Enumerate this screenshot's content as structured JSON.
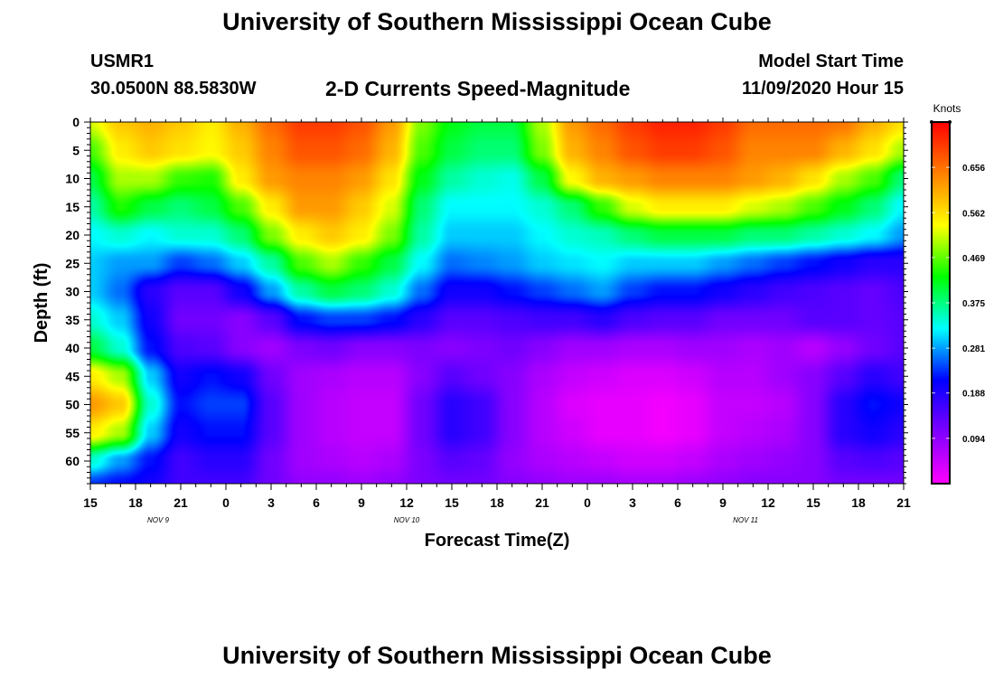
{
  "header": {
    "title_top": "University of Southern Mississippi Ocean Cube",
    "station_id": "USMR1",
    "station_coords": "30.0500N 88.5830W",
    "chart_title": "2-D Currents Speed-Magnitude",
    "model_label": "Model Start Time",
    "model_time": "11/09/2020 Hour 15",
    "title_bottom": "University of Southern Mississippi Ocean Cube"
  },
  "chart_data": {
    "type": "heatmap",
    "title": "2-D Currents Speed-Magnitude",
    "xlabel": "Forecast Time(Z)",
    "ylabel": "Depth (ft)",
    "x_range": [
      0,
      54
    ],
    "y_range": [
      0,
      64
    ],
    "y_inverted": true,
    "x_ticks": [
      {
        "h": 0,
        "label": "15"
      },
      {
        "h": 3,
        "label": "18"
      },
      {
        "h": 6,
        "label": "21"
      },
      {
        "h": 9,
        "label": "0"
      },
      {
        "h": 12,
        "label": "3"
      },
      {
        "h": 15,
        "label": "6"
      },
      {
        "h": 18,
        "label": "9"
      },
      {
        "h": 21,
        "label": "12"
      },
      {
        "h": 24,
        "label": "15"
      },
      {
        "h": 27,
        "label": "18"
      },
      {
        "h": 30,
        "label": "21"
      },
      {
        "h": 33,
        "label": "0"
      },
      {
        "h": 36,
        "label": "3"
      },
      {
        "h": 39,
        "label": "6"
      },
      {
        "h": 42,
        "label": "9"
      },
      {
        "h": 45,
        "label": "12"
      },
      {
        "h": 48,
        "label": "15"
      },
      {
        "h": 51,
        "label": "18"
      },
      {
        "h": 54,
        "label": "21"
      }
    ],
    "day_labels": [
      {
        "h": 4.5,
        "label": "NOV  9"
      },
      {
        "h": 21,
        "label": "NOV  10"
      },
      {
        "h": 43.5,
        "label": "NOV  11"
      }
    ],
    "y_ticks": [
      0,
      5,
      10,
      15,
      20,
      25,
      30,
      35,
      40,
      45,
      50,
      55,
      60
    ],
    "colorbar": {
      "label": "Knots",
      "min": 0.0,
      "max": 0.75,
      "ticks": [
        "0.656",
        "0.562",
        "0.469",
        "0.375",
        "0.281",
        "0.188",
        "0.094"
      ],
      "tick_values": [
        0.656,
        0.562,
        0.469,
        0.375,
        0.281,
        0.188,
        0.094
      ],
      "colors": [
        "#ff00ff",
        "#8000ff",
        "#0000ff",
        "#00ffff",
        "#00ff00",
        "#ffff00",
        "#ff8000",
        "#ff0000"
      ]
    },
    "grid_depths": [
      0,
      5,
      10,
      15,
      20,
      25,
      30,
      35,
      40,
      45,
      50,
      55,
      60,
      64
    ],
    "grid_times": [
      0,
      2,
      4,
      6,
      8,
      10,
      12,
      14,
      16,
      18,
      20,
      22,
      24,
      26,
      28,
      30,
      32,
      34,
      36,
      38,
      40,
      42,
      44,
      46,
      48,
      50,
      52,
      54
    ],
    "values": [
      [
        0.52,
        0.58,
        0.6,
        0.58,
        0.55,
        0.6,
        0.66,
        0.7,
        0.7,
        0.68,
        0.62,
        0.48,
        0.42,
        0.4,
        0.4,
        0.5,
        0.62,
        0.66,
        0.7,
        0.72,
        0.72,
        0.7,
        0.66,
        0.66,
        0.66,
        0.65,
        0.6,
        0.56
      ],
      [
        0.46,
        0.55,
        0.58,
        0.56,
        0.54,
        0.58,
        0.64,
        0.68,
        0.68,
        0.66,
        0.6,
        0.46,
        0.4,
        0.38,
        0.38,
        0.48,
        0.6,
        0.64,
        0.68,
        0.7,
        0.7,
        0.68,
        0.64,
        0.64,
        0.64,
        0.6,
        0.56,
        0.5
      ],
      [
        0.4,
        0.5,
        0.5,
        0.45,
        0.44,
        0.55,
        0.62,
        0.64,
        0.64,
        0.62,
        0.56,
        0.42,
        0.36,
        0.34,
        0.33,
        0.4,
        0.54,
        0.6,
        0.62,
        0.64,
        0.64,
        0.64,
        0.62,
        0.6,
        0.56,
        0.5,
        0.46,
        0.38
      ],
      [
        0.36,
        0.44,
        0.4,
        0.38,
        0.4,
        0.46,
        0.55,
        0.62,
        0.62,
        0.58,
        0.52,
        0.38,
        0.32,
        0.32,
        0.32,
        0.34,
        0.38,
        0.45,
        0.52,
        0.55,
        0.55,
        0.55,
        0.52,
        0.5,
        0.46,
        0.42,
        0.38,
        0.32
      ],
      [
        0.32,
        0.34,
        0.32,
        0.34,
        0.34,
        0.38,
        0.48,
        0.55,
        0.58,
        0.55,
        0.48,
        0.36,
        0.3,
        0.3,
        0.3,
        0.32,
        0.34,
        0.35,
        0.38,
        0.4,
        0.4,
        0.4,
        0.38,
        0.38,
        0.36,
        0.34,
        0.32,
        0.28
      ],
      [
        0.3,
        0.28,
        0.28,
        0.24,
        0.26,
        0.3,
        0.36,
        0.46,
        0.5,
        0.45,
        0.4,
        0.32,
        0.26,
        0.27,
        0.28,
        0.3,
        0.31,
        0.32,
        0.3,
        0.3,
        0.3,
        0.28,
        0.26,
        0.24,
        0.22,
        0.2,
        0.18,
        0.18
      ],
      [
        0.3,
        0.26,
        0.18,
        0.14,
        0.14,
        0.2,
        0.28,
        0.36,
        0.4,
        0.38,
        0.34,
        0.26,
        0.2,
        0.2,
        0.22,
        0.24,
        0.26,
        0.28,
        0.24,
        0.22,
        0.22,
        0.2,
        0.18,
        0.16,
        0.15,
        0.14,
        0.13,
        0.15
      ],
      [
        0.34,
        0.3,
        0.2,
        0.12,
        0.12,
        0.1,
        0.14,
        0.22,
        0.24,
        0.24,
        0.22,
        0.18,
        0.14,
        0.14,
        0.15,
        0.16,
        0.16,
        0.18,
        0.15,
        0.14,
        0.14,
        0.12,
        0.12,
        0.12,
        0.14,
        0.14,
        0.13,
        0.14
      ],
      [
        0.4,
        0.34,
        0.22,
        0.15,
        0.14,
        0.1,
        0.08,
        0.11,
        0.12,
        0.1,
        0.1,
        0.11,
        0.1,
        0.11,
        0.12,
        0.1,
        0.08,
        0.08,
        0.07,
        0.07,
        0.08,
        0.08,
        0.07,
        0.08,
        0.06,
        0.09,
        0.12,
        0.14
      ],
      [
        0.55,
        0.5,
        0.3,
        0.2,
        0.22,
        0.2,
        0.12,
        0.08,
        0.07,
        0.06,
        0.06,
        0.1,
        0.14,
        0.12,
        0.1,
        0.07,
        0.05,
        0.04,
        0.03,
        0.03,
        0.04,
        0.06,
        0.06,
        0.08,
        0.1,
        0.14,
        0.18,
        0.16
      ],
      [
        0.62,
        0.58,
        0.34,
        0.22,
        0.24,
        0.24,
        0.14,
        0.08,
        0.06,
        0.05,
        0.05,
        0.12,
        0.18,
        0.16,
        0.1,
        0.06,
        0.03,
        0.02,
        0.02,
        0.01,
        0.02,
        0.05,
        0.05,
        0.06,
        0.1,
        0.18,
        0.22,
        0.2
      ],
      [
        0.55,
        0.5,
        0.3,
        0.2,
        0.22,
        0.22,
        0.14,
        0.08,
        0.06,
        0.05,
        0.05,
        0.12,
        0.18,
        0.16,
        0.1,
        0.06,
        0.04,
        0.02,
        0.02,
        0.01,
        0.02,
        0.05,
        0.06,
        0.07,
        0.1,
        0.18,
        0.2,
        0.18
      ],
      [
        0.34,
        0.28,
        0.22,
        0.16,
        0.18,
        0.18,
        0.12,
        0.08,
        0.07,
        0.06,
        0.07,
        0.11,
        0.14,
        0.13,
        0.09,
        0.07,
        0.06,
        0.05,
        0.04,
        0.04,
        0.05,
        0.07,
        0.08,
        0.09,
        0.1,
        0.14,
        0.15,
        0.14
      ],
      [
        0.24,
        0.22,
        0.2,
        0.16,
        0.16,
        0.16,
        0.12,
        0.09,
        0.09,
        0.08,
        0.09,
        0.11,
        0.12,
        0.12,
        0.1,
        0.09,
        0.08,
        0.08,
        0.07,
        0.07,
        0.08,
        0.09,
        0.1,
        0.1,
        0.1,
        0.12,
        0.12,
        0.12
      ]
    ]
  }
}
